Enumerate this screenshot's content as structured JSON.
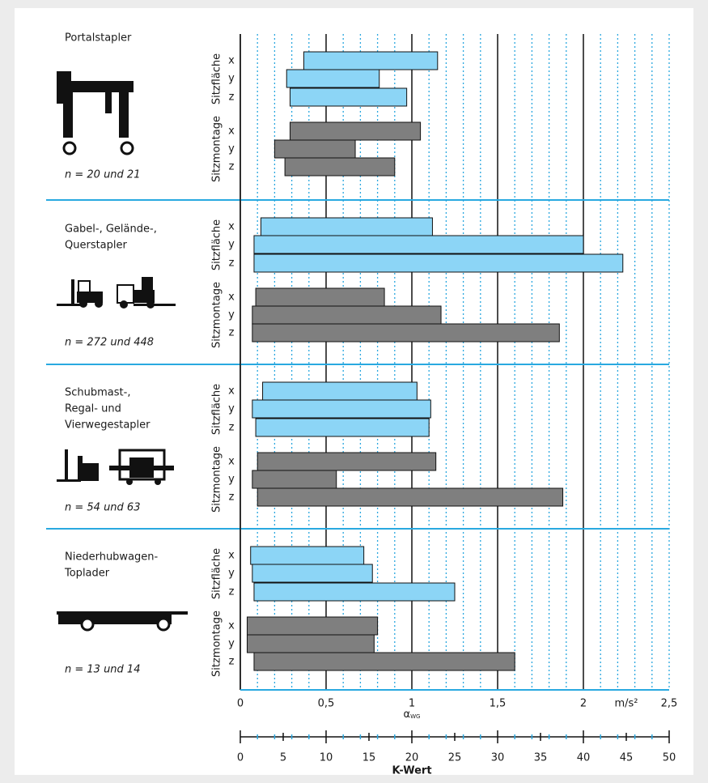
{
  "chart_data": {
    "type": "range-bar",
    "xlim": [
      0,
      2.5
    ],
    "xticks": [
      0,
      {
        "value": 0.5,
        "label": "0,5"
      },
      1,
      {
        "value": 1.5,
        "label": "1,5"
      },
      2,
      {
        "value": 2.5,
        "label": "2,5"
      }
    ],
    "xminorticks": [
      0.1,
      0.2,
      0.3,
      0.4,
      0.6,
      0.7,
      0.8,
      0.9,
      1.1,
      1.2,
      1.3,
      1.4,
      1.6,
      1.7,
      1.8,
      1.9,
      2.1,
      2.2,
      2.3,
      2.4
    ],
    "x_unit": "m/s²",
    "x_label": {
      "symbol": "α",
      "subscript": "WG"
    },
    "k_axis": {
      "xlim": [
        0,
        50
      ],
      "xticks": [
        0,
        5,
        10,
        15,
        20,
        25,
        30,
        35,
        40,
        45,
        50
      ],
      "xminorticks": [
        2,
        4,
        6,
        8,
        12,
        14,
        16,
        18,
        22,
        24,
        26,
        28,
        32,
        34,
        36,
        38,
        42,
        44,
        46,
        48
      ],
      "label": "K-Wert"
    },
    "groups": [
      {
        "name": [
          "Portalstapler"
        ],
        "n": "n = 20 und  21",
        "series": [
          {
            "name": "Sitzfläche",
            "color": "#8cd5f6",
            "rows": [
              "x",
              "y",
              "z"
            ],
            "start": [
              0.37,
              0.27,
              0.29
            ],
            "end": [
              1.15,
              0.81,
              0.97
            ]
          },
          {
            "name": "Sitzmontage",
            "color": "#7f7f7f",
            "rows": [
              "x",
              "y",
              "z"
            ],
            "start": [
              0.29,
              0.2,
              0.26
            ],
            "end": [
              1.05,
              0.67,
              0.9
            ]
          }
        ]
      },
      {
        "name": [
          "Gabel-, Gelände-,",
          "Querstapler"
        ],
        "n": "n = 272 und 448",
        "series": [
          {
            "name": "Sitzfläche",
            "color": "#8cd5f6",
            "rows": [
              "x",
              "y",
              "z"
            ],
            "start": [
              0.12,
              0.08,
              0.08
            ],
            "end": [
              1.12,
              2.0,
              2.23
            ]
          },
          {
            "name": "Sitzmontage",
            "color": "#7f7f7f",
            "rows": [
              "x",
              "y",
              "z"
            ],
            "start": [
              0.09,
              0.07,
              0.07
            ],
            "end": [
              0.84,
              1.17,
              1.86
            ]
          }
        ]
      },
      {
        "name": [
          "Schubmast-,",
          "Regal- und",
          "Vierwegestapler"
        ],
        "n": "n = 54 und 63",
        "series": [
          {
            "name": "Sitzfläche",
            "color": "#8cd5f6",
            "rows": [
              "x",
              "y",
              "z"
            ],
            "start": [
              0.13,
              0.07,
              0.09
            ],
            "end": [
              1.03,
              1.11,
              1.1
            ]
          },
          {
            "name": "Sitzmontage",
            "color": "#7f7f7f",
            "rows": [
              "x",
              "y",
              "z"
            ],
            "start": [
              0.1,
              0.07,
              0.1
            ],
            "end": [
              1.14,
              0.56,
              1.88
            ]
          }
        ]
      },
      {
        "name": [
          "Niederhubwagen-",
          "Toplader"
        ],
        "n": "n = 13  und  14",
        "series": [
          {
            "name": "Sitzfläche",
            "color": "#8cd5f6",
            "rows": [
              "x",
              "y",
              "z"
            ],
            "start": [
              0.06,
              0.07,
              0.08
            ],
            "end": [
              0.72,
              0.77,
              1.25
            ]
          },
          {
            "name": "Sitzmontage",
            "color": "#7f7f7f",
            "rows": [
              "x",
              "y",
              "z"
            ],
            "start": [
              0.04,
              0.04,
              0.08
            ],
            "end": [
              0.8,
              0.78,
              1.6
            ]
          }
        ]
      }
    ]
  }
}
